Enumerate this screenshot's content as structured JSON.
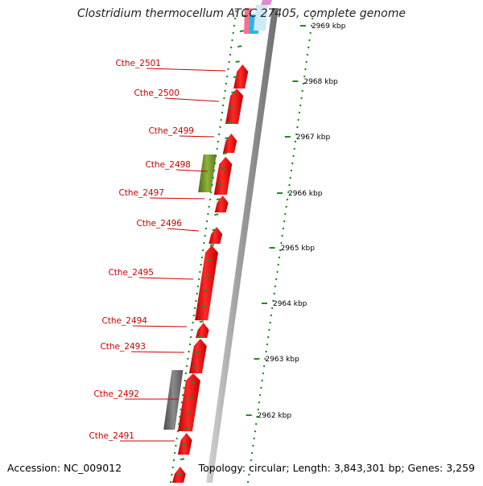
{
  "title": "Clostridium thermocellum ATCC 27405, complete genome",
  "accession": "Accession: NC_009012",
  "topology": "Topology: circular; Length: 3,843,301 bp; Genes: 3,259",
  "colors": {
    "cds": "#ee1111",
    "pseudo": "#707070",
    "rna": "#6b8e23",
    "label": "#cc0000",
    "tick": "#228b22",
    "backbone": "#a9a9a9"
  },
  "kbp_ticks": [
    "2969 kbp",
    "2968 kbp",
    "2967 kbp",
    "2966 kbp",
    "2965 kbp",
    "2964 kbp",
    "2963 kbp",
    "2962 kbp"
  ],
  "genes": [
    {
      "name": "Cthe_2501"
    },
    {
      "name": "Cthe_2500"
    },
    {
      "name": "Cthe_2499"
    },
    {
      "name": "Cthe_2498"
    },
    {
      "name": "Cthe_2497"
    },
    {
      "name": "Cthe_2496"
    },
    {
      "name": "Cthe_2495"
    },
    {
      "name": "Cthe_2494"
    },
    {
      "name": "Cthe_2493"
    },
    {
      "name": "Cthe_2492"
    },
    {
      "name": "Cthe_2491"
    }
  ]
}
